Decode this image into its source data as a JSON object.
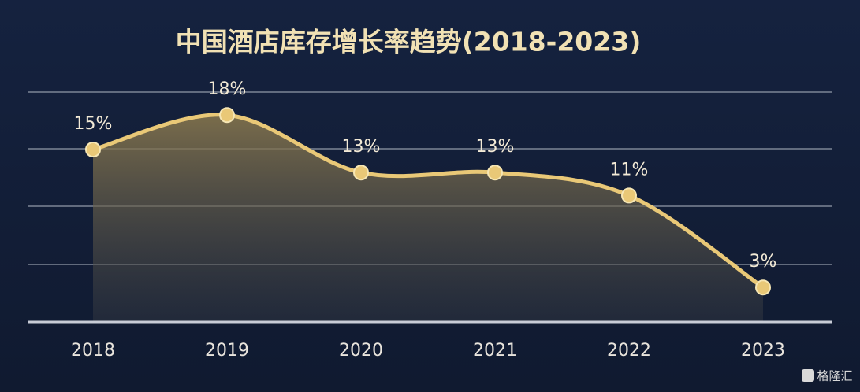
{
  "chart_data": {
    "type": "line",
    "title": "中国酒店库存增长率趋势(2018-2023)",
    "categories": [
      "2018",
      "2019",
      "2020",
      "2021",
      "2022",
      "2023"
    ],
    "series": [
      {
        "name": "库存增长率",
        "color": "#e9c877",
        "values": [
          15,
          18,
          13,
          13,
          11,
          3
        ],
        "value_labels": [
          "15%",
          "18%",
          "13%",
          "13%",
          "11%",
          "3%"
        ]
      }
    ],
    "ylim": [
      0,
      20
    ],
    "watermark": "格隆汇"
  }
}
